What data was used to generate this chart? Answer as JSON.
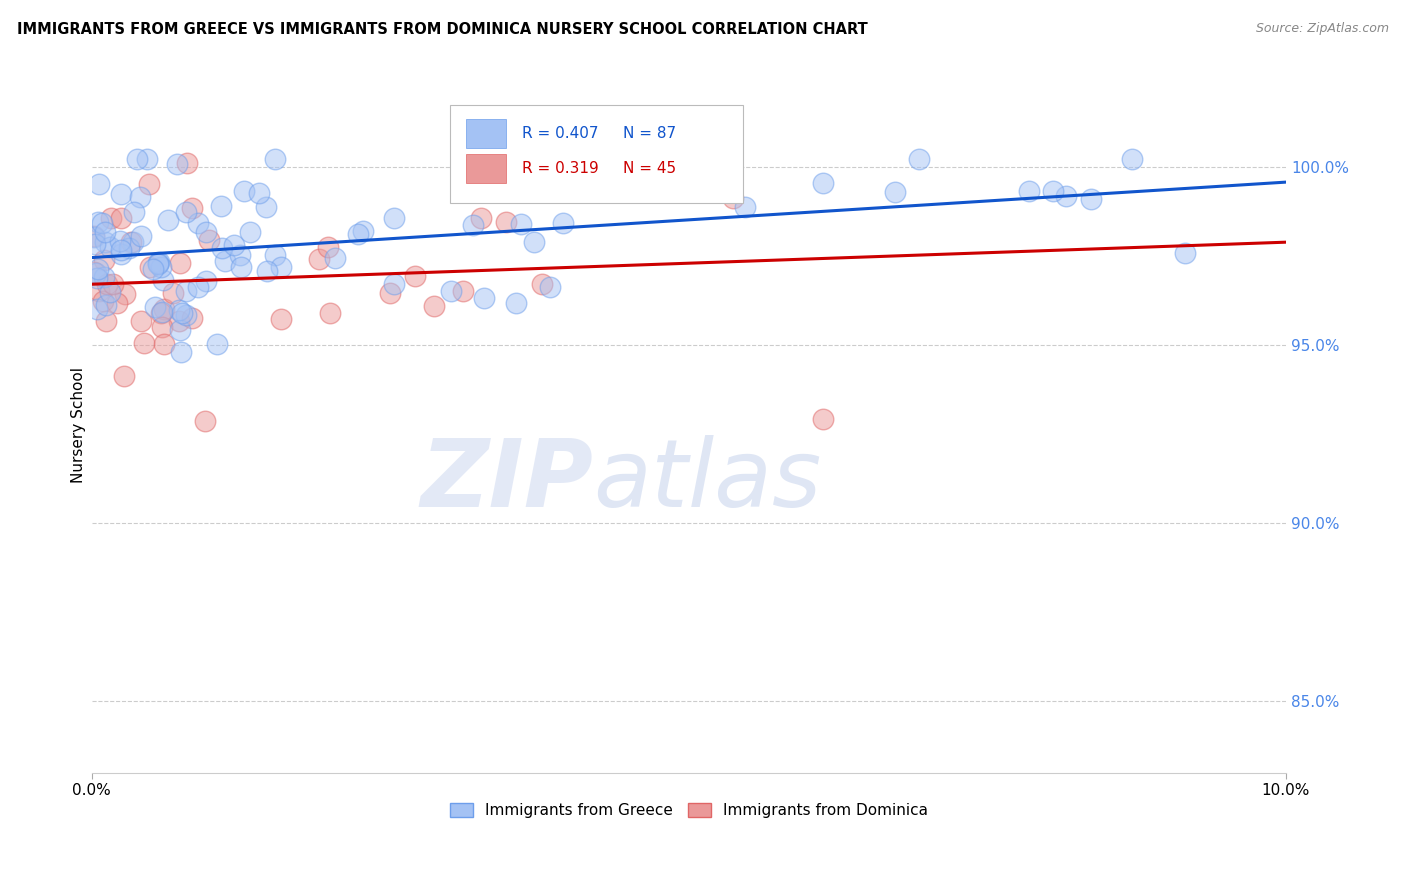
{
  "title": "IMMIGRANTS FROM GREECE VS IMMIGRANTS FROM DOMINICA NURSERY SCHOOL CORRELATION CHART",
  "source": "Source: ZipAtlas.com",
  "ylabel": "Nursery School",
  "legend_greece": "Immigrants from Greece",
  "legend_dominica": "Immigrants from Dominica",
  "legend_r_greece": "R = 0.407",
  "legend_n_greece": "N = 87",
  "legend_r_dominica": "R = 0.319",
  "legend_n_dominica": "N = 45",
  "color_greece": "#a4c2f4",
  "color_dominica": "#ea9999",
  "color_greece_line": "#1155cc",
  "color_dominica_line": "#cc0000",
  "color_greece_edge": "#6d9eeb",
  "color_dominica_edge": "#e06666",
  "color_tick_right": "#4a86e8",
  "xmin": 0.0,
  "xmax": 0.1,
  "ymin": 0.83,
  "ymax": 1.025,
  "ytick_vals": [
    0.85,
    0.9,
    0.95,
    1.0
  ],
  "ytick_labels": [
    "85.0%",
    "90.0%",
    "95.0%",
    "100.0%"
  ],
  "watermark_zip": "ZIP",
  "watermark_atlas": "atlas",
  "seed": 17
}
